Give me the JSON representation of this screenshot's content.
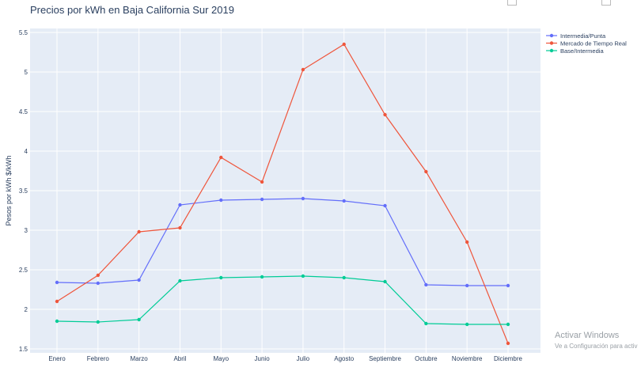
{
  "chart_data": {
    "type": "line",
    "title": "Precios por kWh en Baja California Sur 2019",
    "xlabel": "",
    "ylabel": "Pesos por kWh $/kWh",
    "categories": [
      "Enero",
      "Febrero",
      "Marzo",
      "Abril",
      "Mayo",
      "Junio",
      "Julio",
      "Agosto",
      "Septiembre",
      "Octubre",
      "Noviembre",
      "Diciembre"
    ],
    "ylim": [
      1.45,
      5.55
    ],
    "yticks": [
      "1.5",
      "2",
      "2.5",
      "3",
      "3.5",
      "4",
      "4.5",
      "5",
      "5.5"
    ],
    "grid": true,
    "legend_position": "top-right",
    "series": [
      {
        "name": "Intermedia/Punta",
        "color": "#636efa",
        "values": [
          2.34,
          2.33,
          2.37,
          3.32,
          3.38,
          3.39,
          3.4,
          3.37,
          3.31,
          2.31,
          2.3,
          2.3
        ]
      },
      {
        "name": "Mercado de Tiempo Real",
        "color": "#ef553b",
        "values": [
          2.1,
          2.43,
          2.98,
          3.03,
          3.92,
          3.61,
          5.03,
          5.35,
          4.46,
          3.74,
          2.85,
          1.57
        ]
      },
      {
        "name": "Base/Intermedia",
        "color": "#00cc96",
        "values": [
          1.85,
          1.84,
          1.87,
          2.36,
          2.4,
          2.41,
          2.42,
          2.4,
          2.35,
          1.82,
          1.81,
          1.81
        ]
      }
    ]
  },
  "watermark": {
    "line1": "Activar Windows",
    "line2": "Ve a Configuración para activ"
  }
}
